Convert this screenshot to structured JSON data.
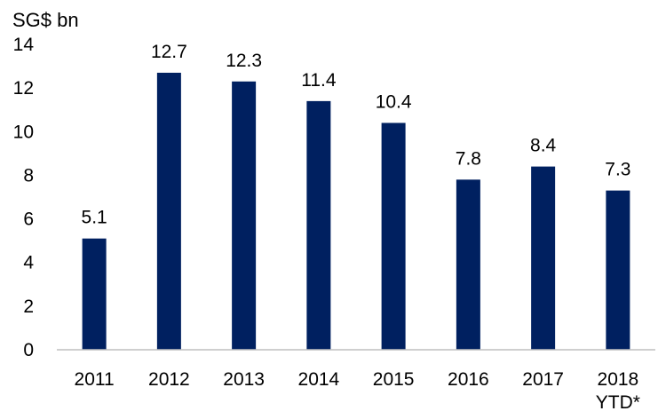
{
  "chart_data": {
    "type": "bar",
    "title": "",
    "ylabel": "SG$ bn",
    "xlabel": "",
    "categories": [
      [
        "2011"
      ],
      [
        "2012"
      ],
      [
        "2013"
      ],
      [
        "2014"
      ],
      [
        "2015"
      ],
      [
        "2016"
      ],
      [
        "2017"
      ],
      [
        "2018",
        "YTD*"
      ]
    ],
    "values": [
      5.1,
      12.7,
      12.3,
      11.4,
      10.4,
      7.8,
      8.4,
      7.3
    ],
    "value_labels": [
      "5.1",
      "12.7",
      "12.3",
      "11.4",
      "10.4",
      "7.8",
      "8.4",
      "7.3"
    ],
    "ylim": [
      0,
      14
    ],
    "yticks": [
      0,
      2,
      4,
      6,
      8,
      10,
      12,
      14
    ],
    "grid": false,
    "legend": "none",
    "bar_color": "#002060"
  }
}
